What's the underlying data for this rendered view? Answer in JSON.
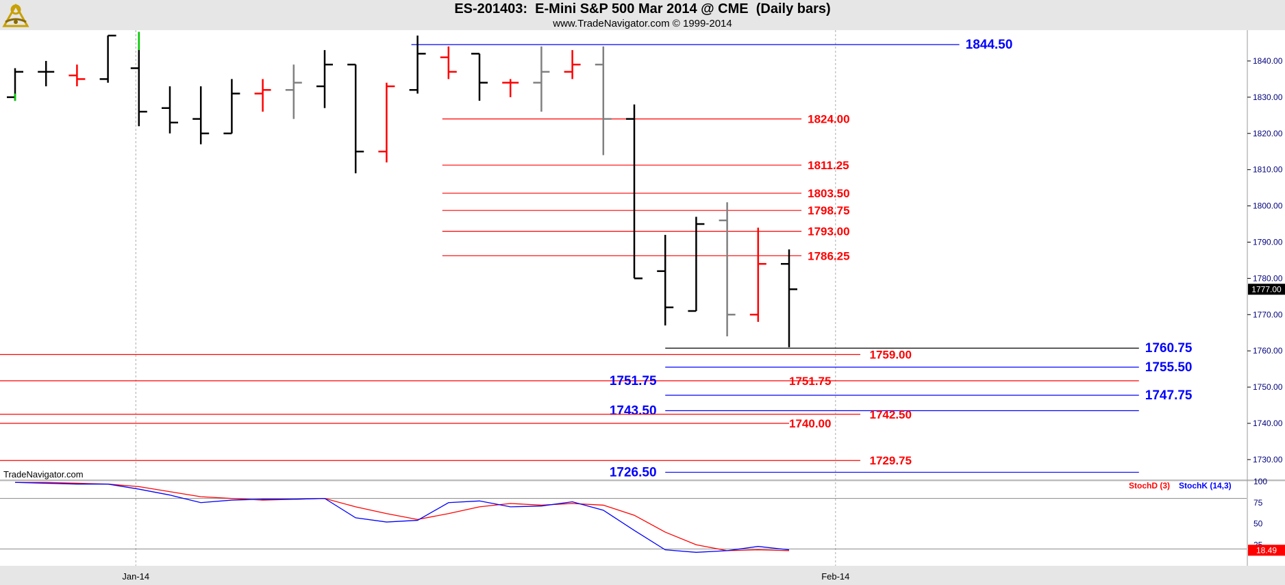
{
  "header": {
    "title": "ES-201403:  E-Mini S&P 500 Mar 2014 @ CME  (Daily bars)",
    "subtitle": "www.TradeNavigator.com © 1999-2014"
  },
  "watermark": "TradeNavigator.com",
  "colors": {
    "up": "#ff0000",
    "down": "#000000",
    "neutral": "#808080",
    "blue": "#0000ff",
    "green": "#00cc00"
  },
  "icons": {
    "logo": "sextant-icon"
  },
  "chart_data": {
    "type": "ohlc",
    "price_axis": {
      "ylim": [
        1724.5,
        1848.5
      ],
      "ticks": [
        "1730.00",
        "1740.00",
        "1750.00",
        "1760.00",
        "1770.00",
        "1780.00",
        "1790.00",
        "1800.00",
        "1810.00",
        "1820.00",
        "1830.00",
        "1840.00"
      ]
    },
    "last_price": "1777.00",
    "x_labels": [
      {
        "label": "Jan-14",
        "bar": 3.9
      },
      {
        "label": "Feb-14",
        "bar": 26.5
      }
    ],
    "bars": [
      {
        "o": 1830,
        "h": 1838,
        "l": 1829,
        "c": 1837,
        "color": "down"
      },
      {
        "o": 1837,
        "h": 1840,
        "l": 1833,
        "c": 1837,
        "color": "down"
      },
      {
        "o": 1836,
        "h": 1839,
        "l": 1833,
        "c": 1835,
        "color": "up"
      },
      {
        "o": 1835,
        "h": 1847,
        "l": 1834,
        "c": 1847,
        "color": "down"
      },
      {
        "o": 1838,
        "h": 1848,
        "l": 1822,
        "c": 1826,
        "color": "down"
      },
      {
        "o": 1827,
        "h": 1833,
        "l": 1820,
        "c": 1823,
        "color": "down"
      },
      {
        "o": 1824,
        "h": 1833,
        "l": 1817,
        "c": 1820,
        "color": "down"
      },
      {
        "o": 1820,
        "h": 1835,
        "l": 1820,
        "c": 1831,
        "color": "down"
      },
      {
        "o": 1831,
        "h": 1835,
        "l": 1826,
        "c": 1832,
        "color": "up"
      },
      {
        "o": 1832,
        "h": 1839,
        "l": 1824,
        "c": 1834,
        "color": "neutral"
      },
      {
        "o": 1833,
        "h": 1843,
        "l": 1827,
        "c": 1839,
        "color": "down"
      },
      {
        "o": 1839,
        "h": 1839,
        "l": 1809,
        "c": 1815,
        "color": "down"
      },
      {
        "o": 1815,
        "h": 1834,
        "l": 1812,
        "c": 1833,
        "color": "up"
      },
      {
        "o": 1832,
        "h": 1847,
        "l": 1831,
        "c": 1842,
        "color": "down"
      },
      {
        "o": 1841,
        "h": 1844,
        "l": 1835,
        "c": 1837,
        "color": "up"
      },
      {
        "o": 1842,
        "h": 1842,
        "l": 1829,
        "c": 1834,
        "color": "down"
      },
      {
        "o": 1834,
        "h": 1835,
        "l": 1830,
        "c": 1834,
        "color": "up"
      },
      {
        "o": 1834,
        "h": 1844,
        "l": 1826,
        "c": 1837,
        "color": "neutral"
      },
      {
        "o": 1837,
        "h": 1843,
        "l": 1835,
        "c": 1839,
        "color": "up"
      },
      {
        "o": 1839,
        "h": 1844,
        "l": 1814,
        "c": 1824,
        "color": "neutral"
      },
      {
        "o": 1824,
        "h": 1828,
        "l": 1780,
        "c": 1780,
        "color": "down"
      },
      {
        "o": 1782,
        "h": 1792,
        "l": 1767,
        "c": 1772,
        "color": "down"
      },
      {
        "o": 1771,
        "h": 1797,
        "l": 1771,
        "c": 1795,
        "color": "down"
      },
      {
        "o": 1796,
        "h": 1801,
        "l": 1764,
        "c": 1770,
        "color": "neutral"
      },
      {
        "o": 1770,
        "h": 1794,
        "l": 1768,
        "c": 1784,
        "color": "up"
      },
      {
        "o": 1784,
        "h": 1788,
        "l": 1761,
        "c": 1777,
        "color": "down"
      }
    ],
    "levels": [
      {
        "label": "1844.50",
        "value": 1844.5,
        "color": "blue",
        "from": 12.8,
        "to": 30.5,
        "label_bar": 30.7,
        "big": true
      },
      {
        "label": "1824.00",
        "value": 1824.0,
        "color": "red",
        "from": 13.8,
        "to": 25.4,
        "label_bar": 25.6
      },
      {
        "label": "1811.25",
        "value": 1811.25,
        "color": "red",
        "from": 13.8,
        "to": 25.4,
        "label_bar": 25.6
      },
      {
        "label": "1803.50",
        "value": 1803.5,
        "color": "red",
        "from": 13.8,
        "to": 25.4,
        "label_bar": 25.6
      },
      {
        "label": "1798.75",
        "value": 1798.75,
        "color": "red",
        "from": 13.8,
        "to": 25.4,
        "label_bar": 25.6
      },
      {
        "label": "1793.00",
        "value": 1793.0,
        "color": "red",
        "from": 13.8,
        "to": 25.4,
        "label_bar": 25.6
      },
      {
        "label": "1786.25",
        "value": 1786.25,
        "color": "red",
        "from": 13.8,
        "to": 25.4,
        "label_bar": 25.6
      },
      {
        "label": "1760.75",
        "value": 1760.75,
        "color": "black",
        "label_color": "blue",
        "from": 21.0,
        "to": 36.3,
        "label_bar": 36.5,
        "big": true
      },
      {
        "label": "1759.00",
        "value": 1759.0,
        "color": "red",
        "from": -0.5,
        "to": 27.3,
        "label_bar": 27.6
      },
      {
        "label": "1755.50",
        "value": 1755.5,
        "color": "blue",
        "from": 21.0,
        "to": 36.3,
        "label_bar": 36.5,
        "big": true
      },
      {
        "label": "1751.75",
        "value": 1751.75,
        "color": "red",
        "from": -0.5,
        "to": 36.3,
        "label_bar": 25.0
      },
      {
        "label": "1751.75",
        "value": 1751.75,
        "color": "blue",
        "from": 21.0,
        "to": 21.0,
        "label_bar": 19.2,
        "big": true
      },
      {
        "label": "1747.75",
        "value": 1747.75,
        "color": "blue",
        "from": 21.0,
        "to": 36.3,
        "label_bar": 36.5,
        "big": true
      },
      {
        "label": "1743.50",
        "value": 1743.5,
        "color": "blue",
        "from": 21.0,
        "to": 36.3,
        "label_bar": 19.2,
        "big": true
      },
      {
        "label": "1742.50",
        "value": 1742.5,
        "color": "red",
        "from": -0.5,
        "to": 27.3,
        "label_bar": 27.6
      },
      {
        "label": "1740.00",
        "value": 1740.0,
        "color": "red",
        "from": -0.5,
        "to": 25.0,
        "label_bar": 25.0
      },
      {
        "label": "1729.75",
        "value": 1729.75,
        "color": "red",
        "from": -0.5,
        "to": 27.3,
        "label_bar": 27.6
      },
      {
        "label": "1726.50",
        "value": 1726.5,
        "color": "blue",
        "from": 21.0,
        "to": 36.3,
        "label_bar": 19.2,
        "big": true
      }
    ],
    "stochastic": {
      "ticks": [
        "100",
        "75",
        "50",
        "25"
      ],
      "hlines": [
        80,
        20
      ],
      "last_value": "18.49",
      "series": [
        {
          "name": "StochD (3)",
          "color": "red",
          "values": [
            99,
            99,
            98,
            97,
            94,
            88,
            82,
            80,
            78,
            79,
            80,
            70,
            62,
            55,
            62,
            70,
            74,
            72,
            74,
            72,
            60,
            40,
            25,
            18,
            19,
            18
          ]
        },
        {
          "name": "StochK (14,3)",
          "color": "blue",
          "values": [
            99,
            98,
            97,
            97,
            91,
            84,
            75,
            78,
            79,
            79,
            80,
            57,
            52,
            54,
            75,
            77,
            70,
            71,
            76,
            66,
            42,
            19,
            16,
            18,
            23,
            19
          ]
        }
      ]
    }
  }
}
